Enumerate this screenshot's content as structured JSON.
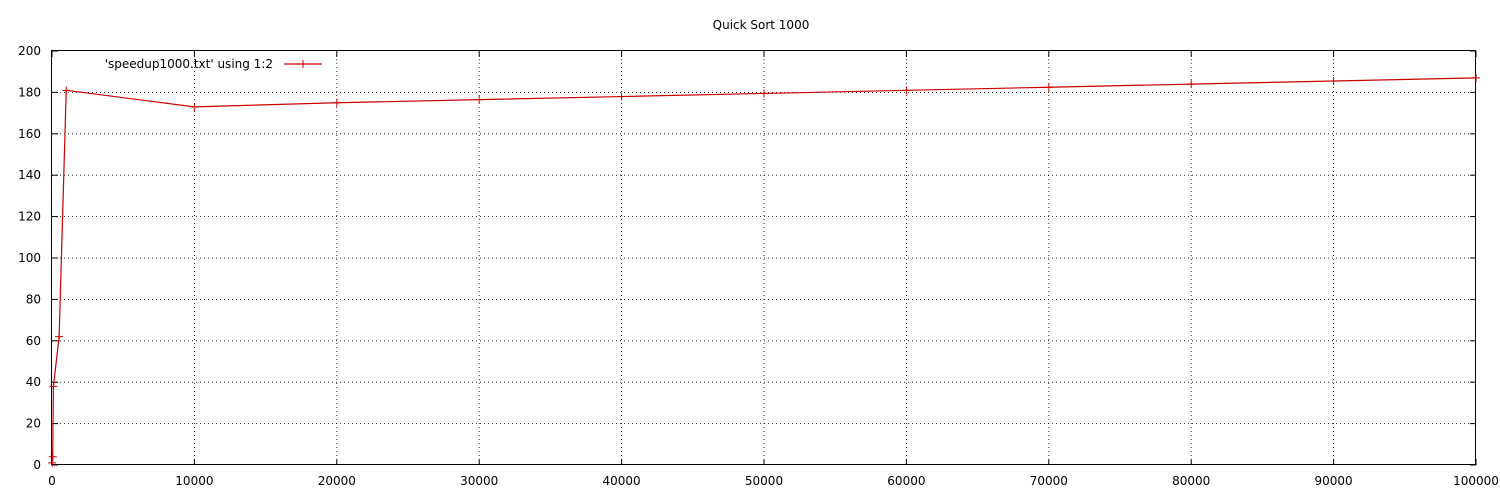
{
  "chart_data": {
    "type": "line",
    "title": "Quick Sort 1000",
    "xlabel": "",
    "ylabel": "",
    "xlim": [
      0,
      100000
    ],
    "ylim": [
      0,
      200
    ],
    "x_ticks": [
      0,
      10000,
      20000,
      30000,
      40000,
      50000,
      60000,
      70000,
      80000,
      90000,
      100000
    ],
    "y_ticks": [
      0,
      20,
      40,
      60,
      80,
      100,
      120,
      140,
      160,
      180,
      200
    ],
    "grid": true,
    "legend_position": "top-left",
    "series": [
      {
        "name": "'speedup1000.txt' using 1:2",
        "color": "#cc0000",
        "marker": "plus",
        "x": [
          10,
          50,
          100,
          500,
          1000,
          10000,
          20000,
          30000,
          40000,
          50000,
          60000,
          70000,
          80000,
          90000,
          100000
        ],
        "y": [
          1,
          4,
          38,
          62,
          181,
          173,
          175,
          176.5,
          178,
          179.5,
          181,
          182.5,
          184,
          185.5,
          187
        ]
      }
    ]
  }
}
